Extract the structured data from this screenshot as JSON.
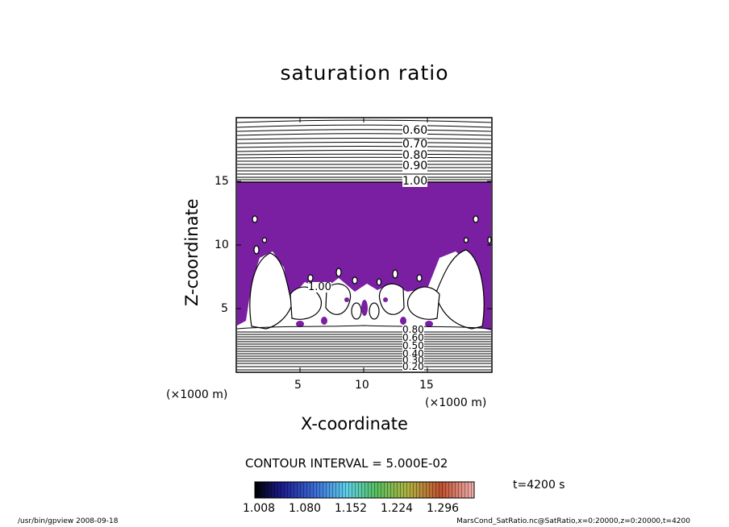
{
  "chart_data": {
    "type": "heatmap",
    "title": "saturation ratio",
    "xlabel": "X-coordinate",
    "ylabel": "Z-coordinate",
    "x_unit_label": "(×1000 m)",
    "y_unit_label": "(×1000 m)",
    "xlim": [
      0,
      20
    ],
    "ylim": [
      0,
      20
    ],
    "x_ticks": [
      "5",
      "10",
      "15"
    ],
    "y_ticks": [
      "5",
      "10",
      "15"
    ],
    "contour_labels_upper": [
      "0.60",
      "0.70",
      "0.80",
      "0.90",
      "1.00"
    ],
    "contour_labels_lower": [
      "0.80",
      "0.60",
      "0.50",
      "0.40",
      "0.30",
      "0.20"
    ],
    "contour_label_mid": "1.00",
    "contour_interval": "CONTOUR INTERVAL = 5.000E-02",
    "colorbar_ticks": [
      "1.008",
      "1.080",
      "1.152",
      "1.224",
      "1.296"
    ],
    "time_label": "t=4200 s",
    "colors": {
      "fill": "#7a1fa2",
      "line": "#000000",
      "background": "#ffffff"
    }
  },
  "footer": {
    "left": "/usr/bin/gpview   2008-09-18",
    "right": "MarsCond_SatRatio.nc@SatRatio,x=0:20000,z=0:20000,t=4200"
  }
}
